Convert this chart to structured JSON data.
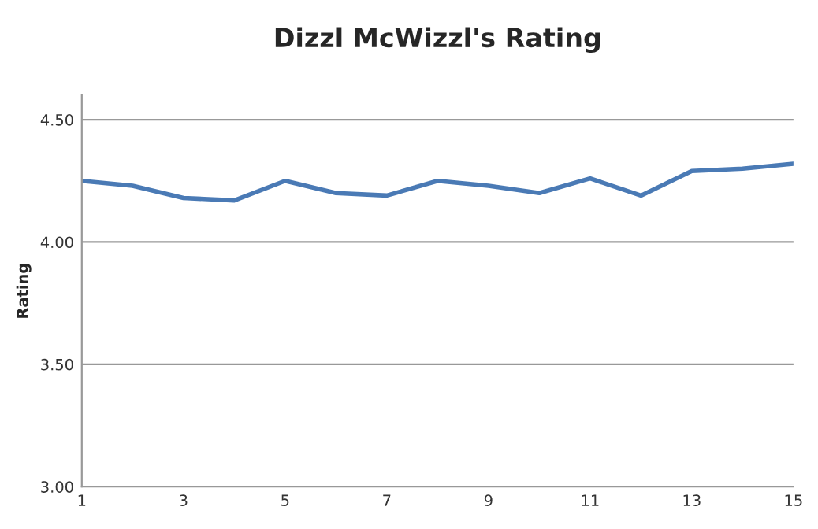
{
  "chart_data": {
    "type": "line",
    "title": "Dizzl McWizzl's Rating",
    "ylabel": "Rating",
    "x": [
      1,
      2,
      3,
      4,
      5,
      6,
      7,
      8,
      9,
      10,
      11,
      12,
      13,
      14,
      15
    ],
    "series": [
      {
        "color": "#4a7ab5",
        "values": [
          4.25,
          4.23,
          4.18,
          4.17,
          4.25,
          4.2,
          4.19,
          4.25,
          4.23,
          4.2,
          4.26,
          4.19,
          4.29,
          4.3,
          4.32
        ]
      }
    ],
    "xlim": [
      1,
      15
    ],
    "xticks": [
      1,
      3,
      5,
      7,
      9,
      11,
      13,
      15
    ],
    "ylim": [
      3.0,
      4.6
    ],
    "yticks": [
      {
        "value": 3.0,
        "label": "3.00"
      },
      {
        "value": 3.5,
        "label": "3.50"
      },
      {
        "value": 4.0,
        "label": "4.00"
      },
      {
        "value": 4.5,
        "label": "4.50"
      }
    ],
    "grid": "y",
    "marker": "none",
    "line_style": "solid"
  }
}
